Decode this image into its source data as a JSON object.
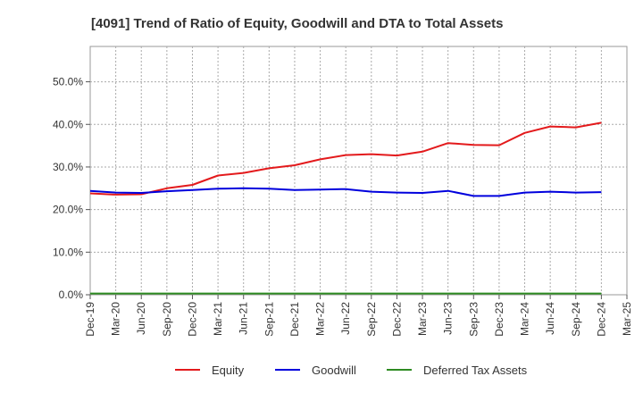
{
  "chart_data": {
    "type": "line",
    "title": "[4091]  Trend of Ratio of Equity, Goodwill and DTA to Total Assets",
    "xlabel": "",
    "ylabel": "",
    "ylim": [
      0,
      0.583
    ],
    "yticks": [
      0.0,
      0.1,
      0.2,
      0.3,
      0.4,
      0.5
    ],
    "ytick_labels": [
      "0.0%",
      "10.0%",
      "20.0%",
      "30.0%",
      "40.0%",
      "50.0%"
    ],
    "x": [
      "Dec-19",
      "Mar-20",
      "Jun-20",
      "Sep-20",
      "Dec-20",
      "Mar-21",
      "Jun-21",
      "Sep-21",
      "Dec-21",
      "Mar-22",
      "Jun-22",
      "Sep-22",
      "Dec-22",
      "Mar-23",
      "Jun-23",
      "Sep-23",
      "Dec-23",
      "Mar-24",
      "Jun-24",
      "Sep-24",
      "Dec-24",
      "Mar-25"
    ],
    "grid": true,
    "legend_position": "bottom",
    "series": [
      {
        "name": "Equity",
        "color": "#e31a1c",
        "values": [
          0.238,
          0.235,
          0.236,
          0.25,
          0.258,
          0.28,
          0.286,
          0.297,
          0.304,
          0.318,
          0.328,
          0.33,
          0.327,
          0.336,
          0.356,
          0.352,
          0.351,
          0.38,
          0.395,
          0.393,
          0.404,
          null
        ]
      },
      {
        "name": "Goodwill",
        "color": "#0000dd",
        "values": [
          0.244,
          0.24,
          0.239,
          0.243,
          0.246,
          0.249,
          0.25,
          0.249,
          0.246,
          0.247,
          0.248,
          0.242,
          0.24,
          0.239,
          0.244,
          0.232,
          0.232,
          0.24,
          0.242,
          0.24,
          0.241,
          null
        ]
      },
      {
        "name": "Deferred Tax Assets",
        "color": "#2e8b22",
        "values": [
          0.003,
          0.003,
          0.003,
          0.003,
          0.003,
          0.003,
          0.003,
          0.003,
          0.003,
          0.003,
          0.003,
          0.003,
          0.003,
          0.003,
          0.003,
          0.003,
          0.003,
          0.003,
          0.003,
          0.003,
          0.003,
          null
        ]
      }
    ]
  }
}
